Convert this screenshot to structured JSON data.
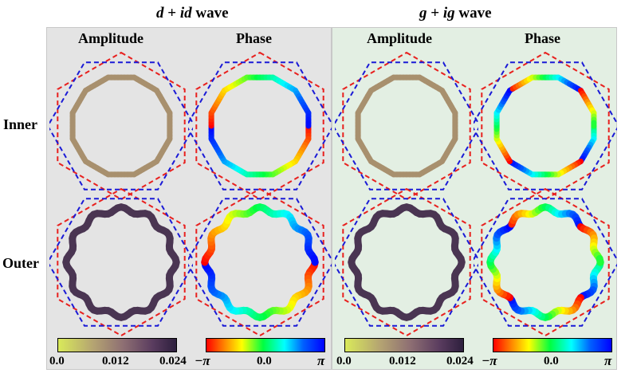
{
  "titles": {
    "left": {
      "a": "d",
      "plus": " + ",
      "b": "id",
      "suffix": " wave"
    },
    "right": {
      "a": "g",
      "plus": " + ",
      "b": "ig",
      "suffix": " wave"
    }
  },
  "column_headers": [
    "Amplitude",
    "Phase",
    "Amplitude",
    "Phase"
  ],
  "row_headers": [
    "Inner",
    "Outer"
  ],
  "colorbars": {
    "amplitude": {
      "min": "0.0",
      "mid": "0.012",
      "max": "0.024"
    },
    "phase": {
      "min": "−π",
      "mid": "0.0",
      "max": "π"
    }
  },
  "colors": {
    "dashed_12gon": "#e8201e",
    "dashed_hexagon": "#1a1ad6",
    "inner_amplitude": "#a8906e",
    "outer_amplitude": "#4a3552",
    "panel_d_bg": "#e4e4e4",
    "panel_g_bg": "#e3efe3"
  },
  "rings": [
    {
      "panel": "d+id",
      "row": "Inner",
      "quantity": "amplitude",
      "value": 0.012
    },
    {
      "panel": "d+id",
      "row": "Inner",
      "quantity": "phase",
      "winding": 2
    },
    {
      "panel": "g+ig",
      "row": "Inner",
      "quantity": "amplitude",
      "value": 0.012
    },
    {
      "panel": "g+ig",
      "row": "Inner",
      "quantity": "phase",
      "winding": 4
    },
    {
      "panel": "d+id",
      "row": "Outer",
      "quantity": "amplitude",
      "value": 0.022
    },
    {
      "panel": "d+id",
      "row": "Outer",
      "quantity": "phase",
      "winding": 2
    },
    {
      "panel": "g+ig",
      "row": "Outer",
      "quantity": "amplitude",
      "value": 0.022
    },
    {
      "panel": "g+ig",
      "row": "Outer",
      "quantity": "phase",
      "winding": 4
    }
  ]
}
